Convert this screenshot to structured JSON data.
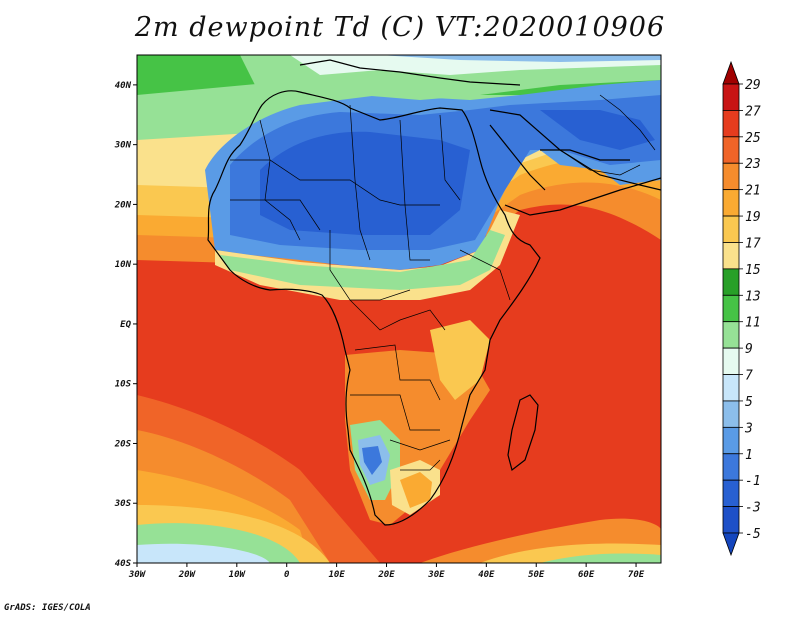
{
  "title": "2m dewpoint Td (C) VT:2020010906",
  "footer": "GrADS: IGES/COLA",
  "map": {
    "lon_range": [
      -30,
      75
    ],
    "lat_range": [
      -40,
      45
    ],
    "lon_ticks": [
      {
        "value": -30,
        "label": "30W"
      },
      {
        "value": -20,
        "label": "20W"
      },
      {
        "value": -10,
        "label": "10W"
      },
      {
        "value": 0,
        "label": "0"
      },
      {
        "value": 10,
        "label": "10E"
      },
      {
        "value": 20,
        "label": "20E"
      },
      {
        "value": 30,
        "label": "30E"
      },
      {
        "value": 40,
        "label": "40E"
      },
      {
        "value": 50,
        "label": "50E"
      },
      {
        "value": 60,
        "label": "60E"
      },
      {
        "value": 70,
        "label": "70E"
      }
    ],
    "lat_ticks": [
      {
        "value": 40,
        "label": "40N"
      },
      {
        "value": 30,
        "label": "30N"
      },
      {
        "value": 20,
        "label": "20N"
      },
      {
        "value": 10,
        "label": "10N"
      },
      {
        "value": 0,
        "label": "EQ"
      },
      {
        "value": -10,
        "label": "10S"
      },
      {
        "value": -20,
        "label": "20S"
      },
      {
        "value": -30,
        "label": "30S"
      },
      {
        "value": -40,
        "label": "40S"
      }
    ]
  },
  "colorbar": {
    "levels": [
      "29",
      "27",
      "25",
      "23",
      "21",
      "19",
      "17",
      "15",
      "13",
      "11",
      "9",
      "7",
      "5",
      "3",
      "1",
      "-1",
      "-3",
      "-5"
    ],
    "colors": [
      "#a00000",
      "#c81414",
      "#e63c1e",
      "#f06428",
      "#f58c2d",
      "#faaa32",
      "#fac850",
      "#fae18c",
      "#28a028",
      "#46c346",
      "#96e196",
      "#e6faf0",
      "#c8e6fa",
      "#8cbeeb",
      "#5a9be6",
      "#3c78dc",
      "#2860d2",
      "#1e50c8",
      "#1446be"
    ]
  }
}
